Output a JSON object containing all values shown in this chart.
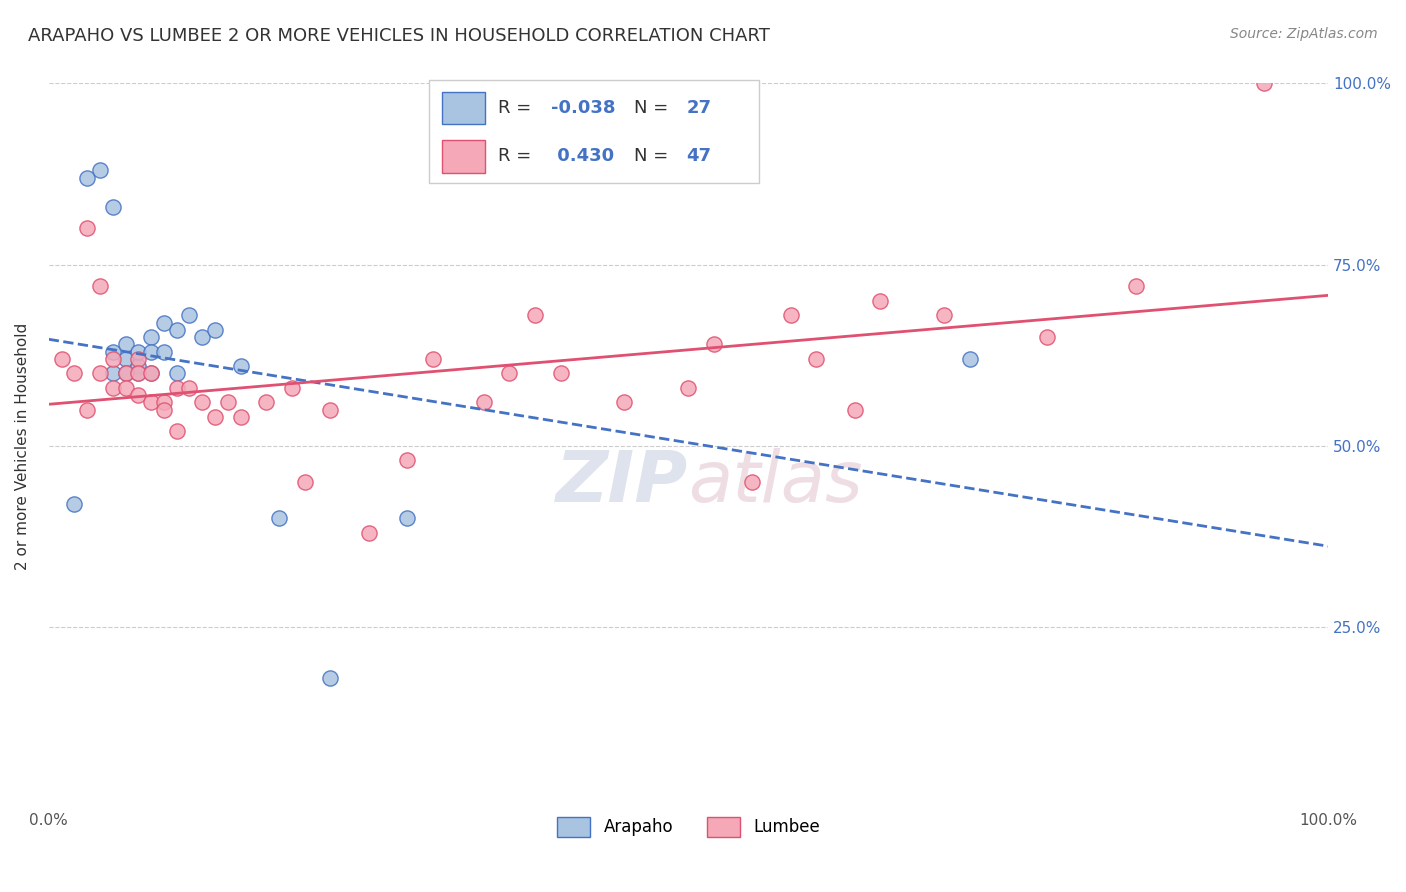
{
  "title": "ARAPAHO VS LUMBEE 2 OR MORE VEHICLES IN HOUSEHOLD CORRELATION CHART",
  "source": "Source: ZipAtlas.com",
  "ylabel": "2 or more Vehicles in Household",
  "xlim": [
    0,
    1
  ],
  "ylim": [
    0,
    1
  ],
  "arapaho_R": "-0.038",
  "arapaho_N": "27",
  "lumbee_R": "0.430",
  "lumbee_N": "47",
  "arapaho_color": "#a8c4e0",
  "lumbee_color": "#f4a8b8",
  "arapaho_line_color": "#4472c4",
  "lumbee_line_color": "#e05070",
  "watermark_zip": "ZIP",
  "watermark_atlas": "atlas",
  "title_fontsize": 13,
  "source_fontsize": 10,
  "marker_size": 120,
  "arapaho_x": [
    0.02,
    0.03,
    0.04,
    0.05,
    0.05,
    0.05,
    0.06,
    0.06,
    0.06,
    0.07,
    0.07,
    0.07,
    0.08,
    0.08,
    0.08,
    0.09,
    0.09,
    0.1,
    0.1,
    0.11,
    0.12,
    0.13,
    0.15,
    0.18,
    0.22,
    0.28,
    0.72
  ],
  "arapaho_y": [
    0.42,
    0.87,
    0.88,
    0.83,
    0.63,
    0.6,
    0.62,
    0.64,
    0.6,
    0.61,
    0.6,
    0.63,
    0.6,
    0.65,
    0.63,
    0.67,
    0.63,
    0.66,
    0.6,
    0.68,
    0.65,
    0.66,
    0.61,
    0.4,
    0.18,
    0.4,
    0.62
  ],
  "lumbee_x": [
    0.01,
    0.02,
    0.03,
    0.03,
    0.04,
    0.04,
    0.05,
    0.05,
    0.06,
    0.06,
    0.07,
    0.07,
    0.07,
    0.08,
    0.08,
    0.09,
    0.09,
    0.1,
    0.1,
    0.11,
    0.12,
    0.13,
    0.14,
    0.15,
    0.17,
    0.19,
    0.2,
    0.22,
    0.25,
    0.28,
    0.3,
    0.34,
    0.36,
    0.38,
    0.4,
    0.45,
    0.5,
    0.52,
    0.55,
    0.58,
    0.6,
    0.63,
    0.65,
    0.7,
    0.78,
    0.85,
    0.95
  ],
  "lumbee_y": [
    0.62,
    0.6,
    0.55,
    0.8,
    0.6,
    0.72,
    0.58,
    0.62,
    0.6,
    0.58,
    0.62,
    0.6,
    0.57,
    0.6,
    0.56,
    0.56,
    0.55,
    0.58,
    0.52,
    0.58,
    0.56,
    0.54,
    0.56,
    0.54,
    0.56,
    0.58,
    0.45,
    0.55,
    0.38,
    0.48,
    0.62,
    0.56,
    0.6,
    0.68,
    0.6,
    0.56,
    0.58,
    0.64,
    0.45,
    0.68,
    0.62,
    0.55,
    0.7,
    0.68,
    0.65,
    0.72,
    1.0
  ]
}
